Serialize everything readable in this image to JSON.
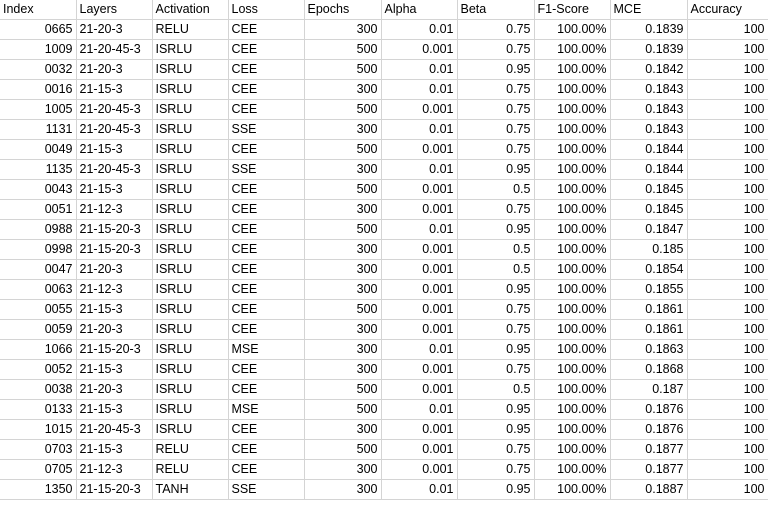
{
  "columns": [
    "Index",
    "Layers",
    "Activation",
    "Loss",
    "Epochs",
    "Alpha",
    "Beta",
    "F1-Score",
    "MCE",
    "Accuracy"
  ],
  "rows": [
    [
      "0665",
      "21-20-3",
      "RELU",
      "CEE",
      "300",
      "0.01",
      "0.75",
      "100.00%",
      "0.1839",
      "100"
    ],
    [
      "1009",
      "21-20-45-3",
      "ISRLU",
      "CEE",
      "500",
      "0.001",
      "0.75",
      "100.00%",
      "0.1839",
      "100"
    ],
    [
      "0032",
      "21-20-3",
      "ISRLU",
      "CEE",
      "500",
      "0.01",
      "0.95",
      "100.00%",
      "0.1842",
      "100"
    ],
    [
      "0016",
      "21-15-3",
      "ISRLU",
      "CEE",
      "300",
      "0.01",
      "0.75",
      "100.00%",
      "0.1843",
      "100"
    ],
    [
      "1005",
      "21-20-45-3",
      "ISRLU",
      "CEE",
      "500",
      "0.001",
      "0.75",
      "100.00%",
      "0.1843",
      "100"
    ],
    [
      "1131",
      "21-20-45-3",
      "ISRLU",
      "SSE",
      "300",
      "0.01",
      "0.75",
      "100.00%",
      "0.1843",
      "100"
    ],
    [
      "0049",
      "21-15-3",
      "ISRLU",
      "CEE",
      "500",
      "0.001",
      "0.75",
      "100.00%",
      "0.1844",
      "100"
    ],
    [
      "1135",
      "21-20-45-3",
      "ISRLU",
      "SSE",
      "300",
      "0.01",
      "0.95",
      "100.00%",
      "0.1844",
      "100"
    ],
    [
      "0043",
      "21-15-3",
      "ISRLU",
      "CEE",
      "500",
      "0.001",
      "0.5",
      "100.00%",
      "0.1845",
      "100"
    ],
    [
      "0051",
      "21-12-3",
      "ISRLU",
      "CEE",
      "300",
      "0.001",
      "0.75",
      "100.00%",
      "0.1845",
      "100"
    ],
    [
      "0988",
      "21-15-20-3",
      "ISRLU",
      "CEE",
      "500",
      "0.01",
      "0.95",
      "100.00%",
      "0.1847",
      "100"
    ],
    [
      "0998",
      "21-15-20-3",
      "ISRLU",
      "CEE",
      "300",
      "0.001",
      "0.5",
      "100.00%",
      "0.185",
      "100"
    ],
    [
      "0047",
      "21-20-3",
      "ISRLU",
      "CEE",
      "300",
      "0.001",
      "0.5",
      "100.00%",
      "0.1854",
      "100"
    ],
    [
      "0063",
      "21-12-3",
      "ISRLU",
      "CEE",
      "300",
      "0.001",
      "0.95",
      "100.00%",
      "0.1855",
      "100"
    ],
    [
      "0055",
      "21-15-3",
      "ISRLU",
      "CEE",
      "500",
      "0.001",
      "0.75",
      "100.00%",
      "0.1861",
      "100"
    ],
    [
      "0059",
      "21-20-3",
      "ISRLU",
      "CEE",
      "300",
      "0.001",
      "0.75",
      "100.00%",
      "0.1861",
      "100"
    ],
    [
      "1066",
      "21-15-20-3",
      "ISRLU",
      "MSE",
      "300",
      "0.01",
      "0.95",
      "100.00%",
      "0.1863",
      "100"
    ],
    [
      "0052",
      "21-15-3",
      "ISRLU",
      "CEE",
      "300",
      "0.001",
      "0.75",
      "100.00%",
      "0.1868",
      "100"
    ],
    [
      "0038",
      "21-20-3",
      "ISRLU",
      "CEE",
      "500",
      "0.001",
      "0.5",
      "100.00%",
      "0.187",
      "100"
    ],
    [
      "0133",
      "21-15-3",
      "ISRLU",
      "MSE",
      "500",
      "0.01",
      "0.95",
      "100.00%",
      "0.1876",
      "100"
    ],
    [
      "1015",
      "21-20-45-3",
      "ISRLU",
      "CEE",
      "300",
      "0.001",
      "0.95",
      "100.00%",
      "0.1876",
      "100"
    ],
    [
      "0703",
      "21-15-3",
      "RELU",
      "CEE",
      "500",
      "0.001",
      "0.75",
      "100.00%",
      "0.1877",
      "100"
    ],
    [
      "0705",
      "21-12-3",
      "RELU",
      "CEE",
      "300",
      "0.001",
      "0.75",
      "100.00%",
      "0.1877",
      "100"
    ],
    [
      "1350",
      "21-15-20-3",
      "TANH",
      "SSE",
      "300",
      "0.01",
      "0.95",
      "100.00%",
      "0.1887",
      "100"
    ]
  ]
}
